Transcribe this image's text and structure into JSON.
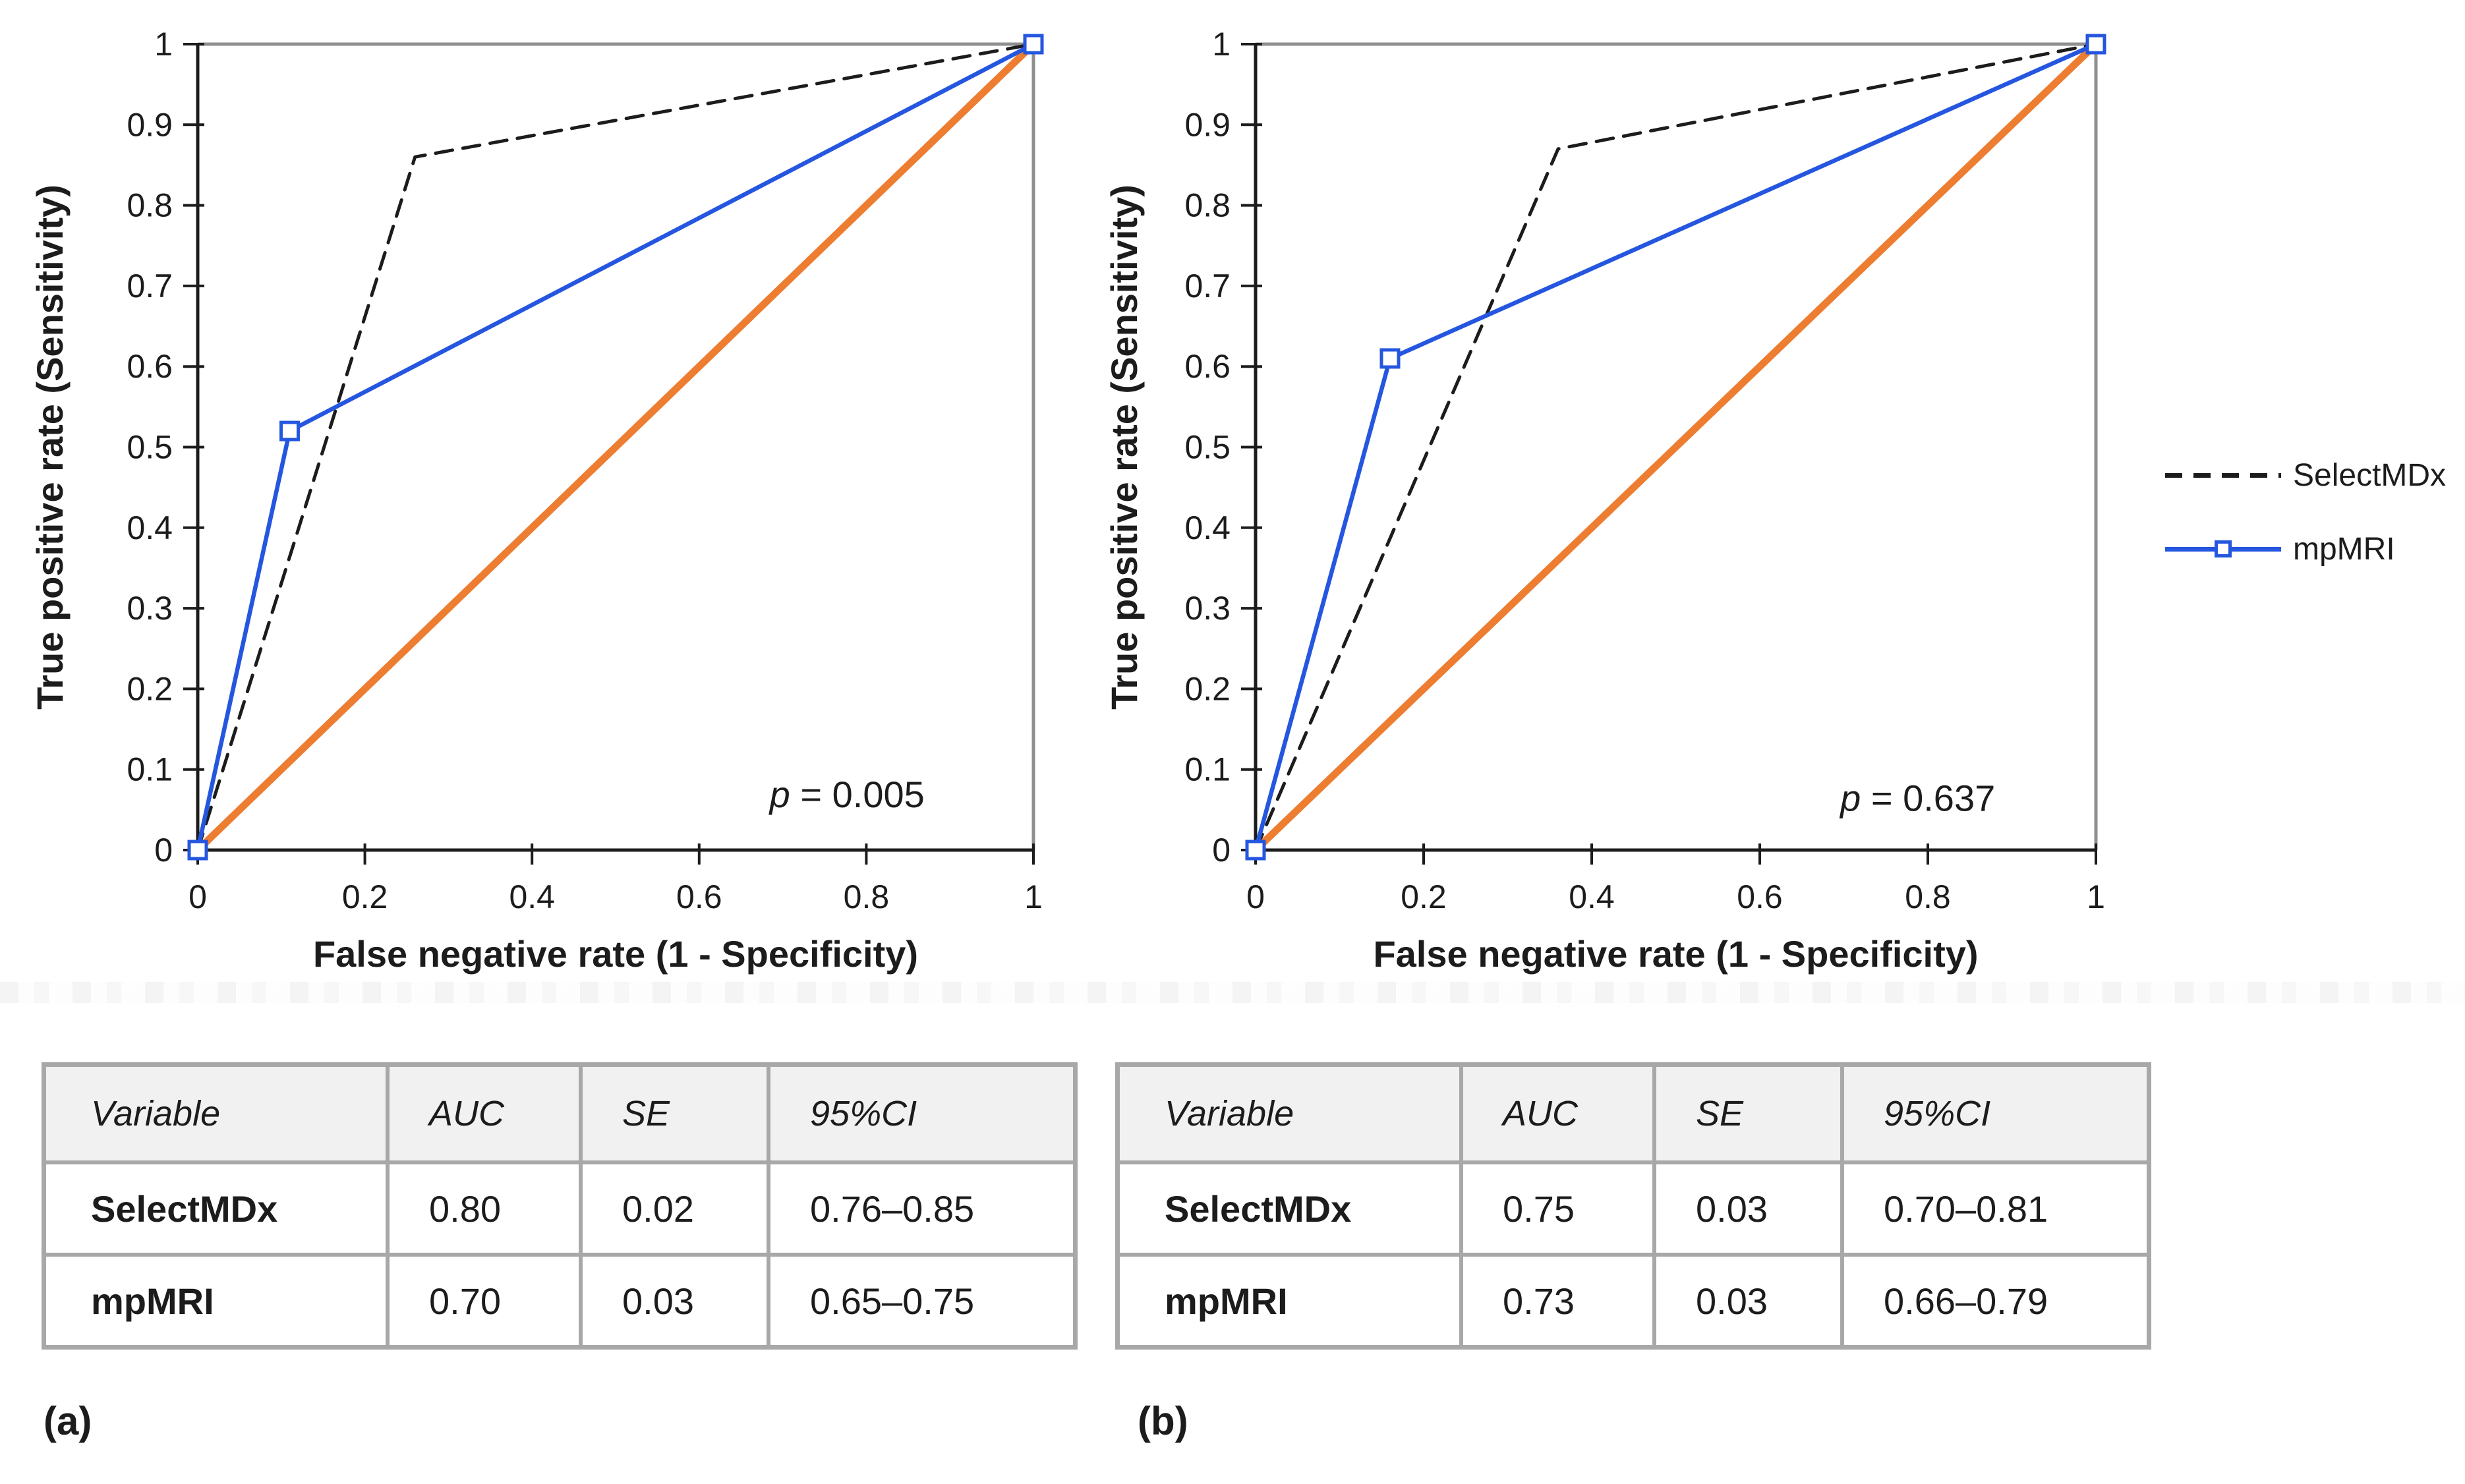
{
  "figure": {
    "panel_a_label": "(a)",
    "panel_b_label": "(b)"
  },
  "colors": {
    "selectmdx": "#1c1c1c",
    "mpmri": "#2556df",
    "reference": "#ed7d31",
    "axis": "#1c1c1c",
    "plot_border": "#8f8f8f",
    "table_border": "#a8a8a8",
    "table_header_bg": "#f1f1f1"
  },
  "legend": {
    "position": "right-outside",
    "items": [
      {
        "label": "SelectMDx",
        "style": "dashed-black-line"
      },
      {
        "label": "mpMRI",
        "style": "solid-blue-line-open-square-marker"
      }
    ]
  },
  "chart_data": [
    {
      "type": "line",
      "panel": "a",
      "title": "",
      "xlabel": "False negative rate (1 - Specificity)",
      "ylabel": "True positive rate (Sensitivity)",
      "xlim": [
        0,
        1
      ],
      "ylim": [
        0,
        1
      ],
      "grid": false,
      "x_ticks": [
        0,
        0.2,
        0.4,
        0.6,
        0.8,
        1
      ],
      "x_tick_labels": [
        "0",
        "0.2",
        "0.4",
        "0.6",
        "0.8",
        "1"
      ],
      "y_ticks": [
        0,
        0.1,
        0.2,
        0.3,
        0.4,
        0.5,
        0.6,
        0.7,
        0.8,
        0.9,
        1
      ],
      "y_tick_labels": [
        "0",
        "0.1",
        "0.2",
        "0.3",
        "0.4",
        "0.5",
        "0.6",
        "0.7",
        "0.8",
        "0.9",
        "1"
      ],
      "p_annotation": {
        "italic": "p",
        "rest": " = 0.005",
        "x": 0.777,
        "y": 0.0695
      },
      "series": [
        {
          "name": "SelectMDx",
          "color": "#1c1c1c",
          "dash": "26 16",
          "width": 5,
          "points": [
            [
              0,
              0
            ],
            [
              0.26,
              0.86
            ],
            [
              1,
              1
            ]
          ]
        },
        {
          "name": "reference",
          "color": "#ed7d31",
          "width": 11,
          "points": [
            [
              0,
              0
            ],
            [
              1,
              1
            ]
          ]
        },
        {
          "name": "mpMRI",
          "color": "#2556df",
          "width": 6.5,
          "marker": "open-square",
          "points": [
            [
              0,
              0
            ],
            [
              0.11,
              0.52
            ],
            [
              1,
              1
            ]
          ]
        }
      ]
    },
    {
      "type": "line",
      "panel": "b",
      "title": "",
      "xlabel": "False negative rate (1 - Specificity)",
      "ylabel": "True positive rate (Sensitivity)",
      "xlim": [
        0,
        1
      ],
      "ylim": [
        0,
        1
      ],
      "grid": false,
      "x_ticks": [
        0,
        0.2,
        0.4,
        0.6,
        0.8,
        1
      ],
      "x_tick_labels": [
        "0",
        "0.2",
        "0.4",
        "0.6",
        "0.8",
        "1"
      ],
      "y_ticks": [
        0,
        0.1,
        0.2,
        0.3,
        0.4,
        0.5,
        0.6,
        0.7,
        0.8,
        0.9,
        1
      ],
      "y_tick_labels": [
        "0",
        "0.1",
        "0.2",
        "0.3",
        "0.4",
        "0.5",
        "0.6",
        "0.7",
        "0.8",
        "0.9",
        "1"
      ],
      "p_annotation": {
        "italic": "p",
        "rest": " = 0.637",
        "x": 0.788,
        "y": 0.065
      },
      "series": [
        {
          "name": "SelectMDx",
          "color": "#1c1c1c",
          "dash": "26 16",
          "width": 5,
          "points": [
            [
              0,
              0
            ],
            [
              0.36,
              0.87
            ],
            [
              1,
              1
            ]
          ]
        },
        {
          "name": "reference",
          "color": "#ed7d31",
          "width": 11,
          "points": [
            [
              0,
              0
            ],
            [
              1,
              1
            ]
          ]
        },
        {
          "name": "mpMRI",
          "color": "#2556df",
          "width": 6.5,
          "marker": "open-square",
          "points": [
            [
              0,
              0
            ],
            [
              0.16,
              0.61
            ],
            [
              1,
              1
            ]
          ]
        }
      ]
    }
  ],
  "tables": [
    {
      "headers": [
        "Variable",
        "AUC",
        "SE",
        "95%CI"
      ],
      "rows": [
        [
          "SelectMDx",
          "0.80",
          "0.02",
          "0.76–0.85"
        ],
        [
          "mpMRI",
          "0.70",
          "0.03",
          "0.65–0.75"
        ]
      ]
    },
    {
      "headers": [
        "Variable",
        "AUC",
        "SE",
        "95%CI"
      ],
      "rows": [
        [
          "SelectMDx",
          "0.75",
          "0.03",
          "0.70–0.81"
        ],
        [
          "mpMRI",
          "0.73",
          "0.03",
          "0.66–0.79"
        ]
      ]
    }
  ]
}
